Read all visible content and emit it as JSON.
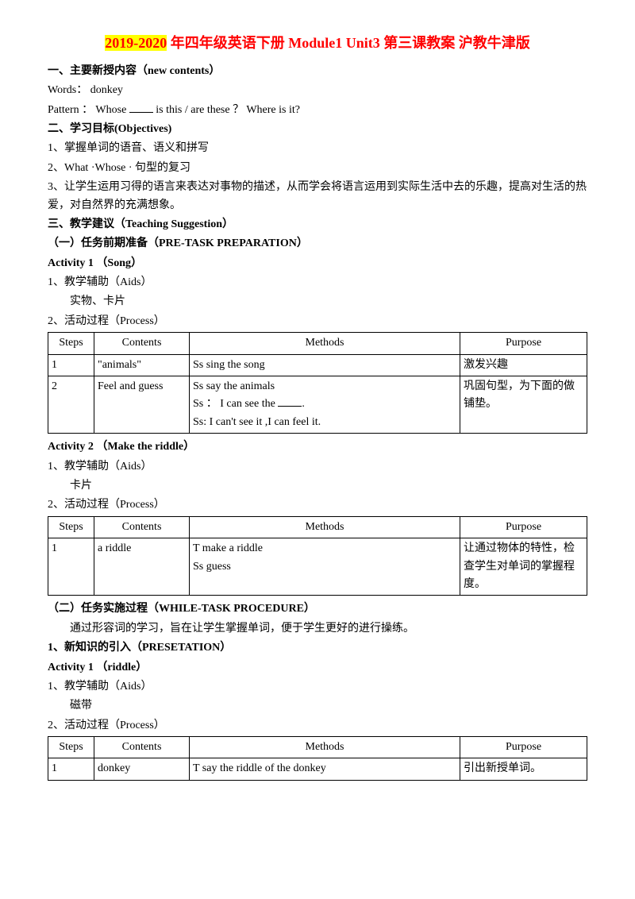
{
  "title_highlight": "2019-2020",
  "title_rest": " 年四年级英语下册 Module1 Unit3 第三课教案 沪教牛津版",
  "sec1_heading": "一、主要新授内容（new contents）",
  "words_line": "Words：  donkey",
  "pattern_prefix": "Pattern ：  Whose ",
  "pattern_suffix": " is this / are these ？  Where is it?",
  "sec2_heading": "二、学习目标(Objectives)",
  "obj1": "1、掌握单词的语音、语义和拼写",
  "obj2": "2、What ·Whose · 句型的复习",
  "obj3": "3、让学生运用习得的语言来表达对事物的描述，从而学会将语言运用到实际生活中去的乐趣，提高对生活的热爱，对自然界的充满想象。",
  "sec3_heading": "三、教学建议（Teaching Suggestion）",
  "sub1_heading": "（一）任务前期准备（PRE-TASK PREPARATION）",
  "act1_heading": "Activity 1 （Song）",
  "aids_label": "1、教学辅助（Aids）",
  "act1_aids": "实物、卡片",
  "process_label": "2、活动过程（Process）",
  "th_steps": "Steps",
  "th_contents": "Contents",
  "th_methods": "Methods",
  "th_purpose": "Purpose",
  "t1r1_step": "1",
  "t1r1_contents": "\"animals\"",
  "t1r1_methods": "Ss sing the song",
  "t1r1_purpose": "激发兴趣",
  "t1r2_step": "2",
  "t1r2_contents": "Feel and guess",
  "t1r2_m1": "Ss say the animals",
  "t1r2_m2a": "Ss ： I can see the ",
  "t1r2_m2b": ".",
  "t1r2_m3": "Ss:  I  can't  see  it  ,I  can feel it.",
  "t1r2_purpose": "巩固句型，为下面的做铺垫。",
  "act2_heading": "Activity 2 （Make the riddle）",
  "act2_aids": "卡片",
  "t2r1_step": "1",
  "t2r1_contents": "a riddle",
  "t2r1_m1": "T make a riddle",
  "t2r1_m2": "Ss guess",
  "t2r1_purpose": "让通过物体的特性，检查学生对单词的掌握程度。",
  "sub2_heading": "（二）任务实施过程（WHILE-TASK PROCEDURE）",
  "sub2_desc": "通过形容词的学习，旨在让学生掌握单词，便于学生更好的进行操练。",
  "pres_heading": "1、新知识的引入（PRESETATION）",
  "act3_heading": "Activity 1 （riddle）",
  "act3_aids": "磁带",
  "t3r1_step": "1",
  "t3r1_contents": "donkey",
  "t3r1_methods": "T say the riddle of the donkey",
  "t3r1_purpose": "引出新授单词。"
}
